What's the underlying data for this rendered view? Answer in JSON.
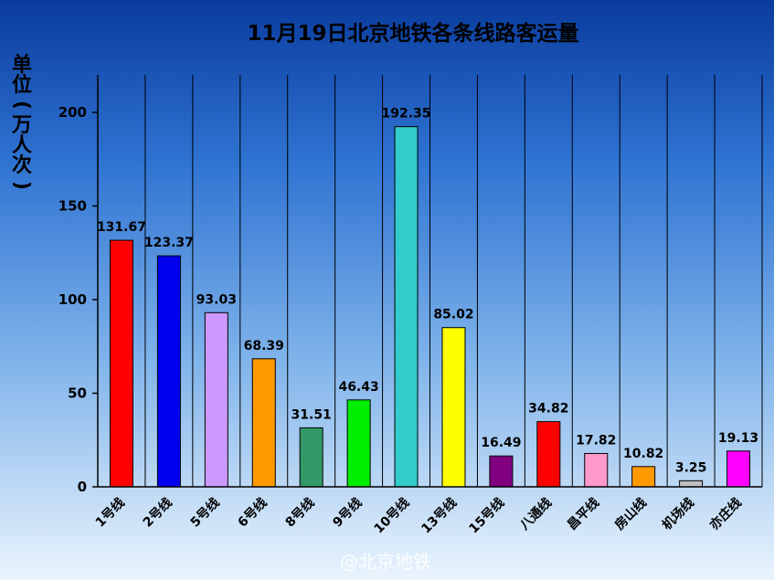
{
  "chart_data": {
    "type": "bar",
    "title": "11月19日北京地铁各条线路客运量",
    "ylabel": "单位（万人次）",
    "xlabel": "",
    "ylim": [
      0,
      220
    ],
    "yticks": [
      0,
      50,
      100,
      150,
      200
    ],
    "grid": "vertical separators between categories",
    "categories": [
      "1号线",
      "2号线",
      "5号线",
      "6号线",
      "8号线",
      "9号线",
      "10号线",
      "13号线",
      "15号线",
      "八通线",
      "昌平线",
      "房山线",
      "机场线",
      "亦庄线"
    ],
    "values": [
      131.67,
      123.37,
      93.03,
      68.39,
      31.51,
      46.43,
      192.35,
      85.02,
      16.49,
      34.82,
      17.82,
      10.82,
      3.25,
      19.13
    ],
    "value_labels": [
      "131.67",
      "123.37",
      "93.03",
      "68.39",
      "31.51",
      "46.43",
      "192.35",
      "85.02",
      "16.49",
      "34.82",
      "17.82",
      "10.82",
      "3.25",
      "19.13"
    ],
    "colors": [
      "#ff0000",
      "#0000ee",
      "#cc99ff",
      "#ff9900",
      "#339966",
      "#00ee00",
      "#33cccc",
      "#ffff00",
      "#800080",
      "#ff0000",
      "#ff99cc",
      "#ff9900",
      "#c0c0c0",
      "#ff00ff"
    ]
  },
  "ylabel_chars": [
    "单",
    "位",
    "(",
    "万",
    "人",
    "次",
    ")"
  ],
  "watermark": "@北京地铁"
}
